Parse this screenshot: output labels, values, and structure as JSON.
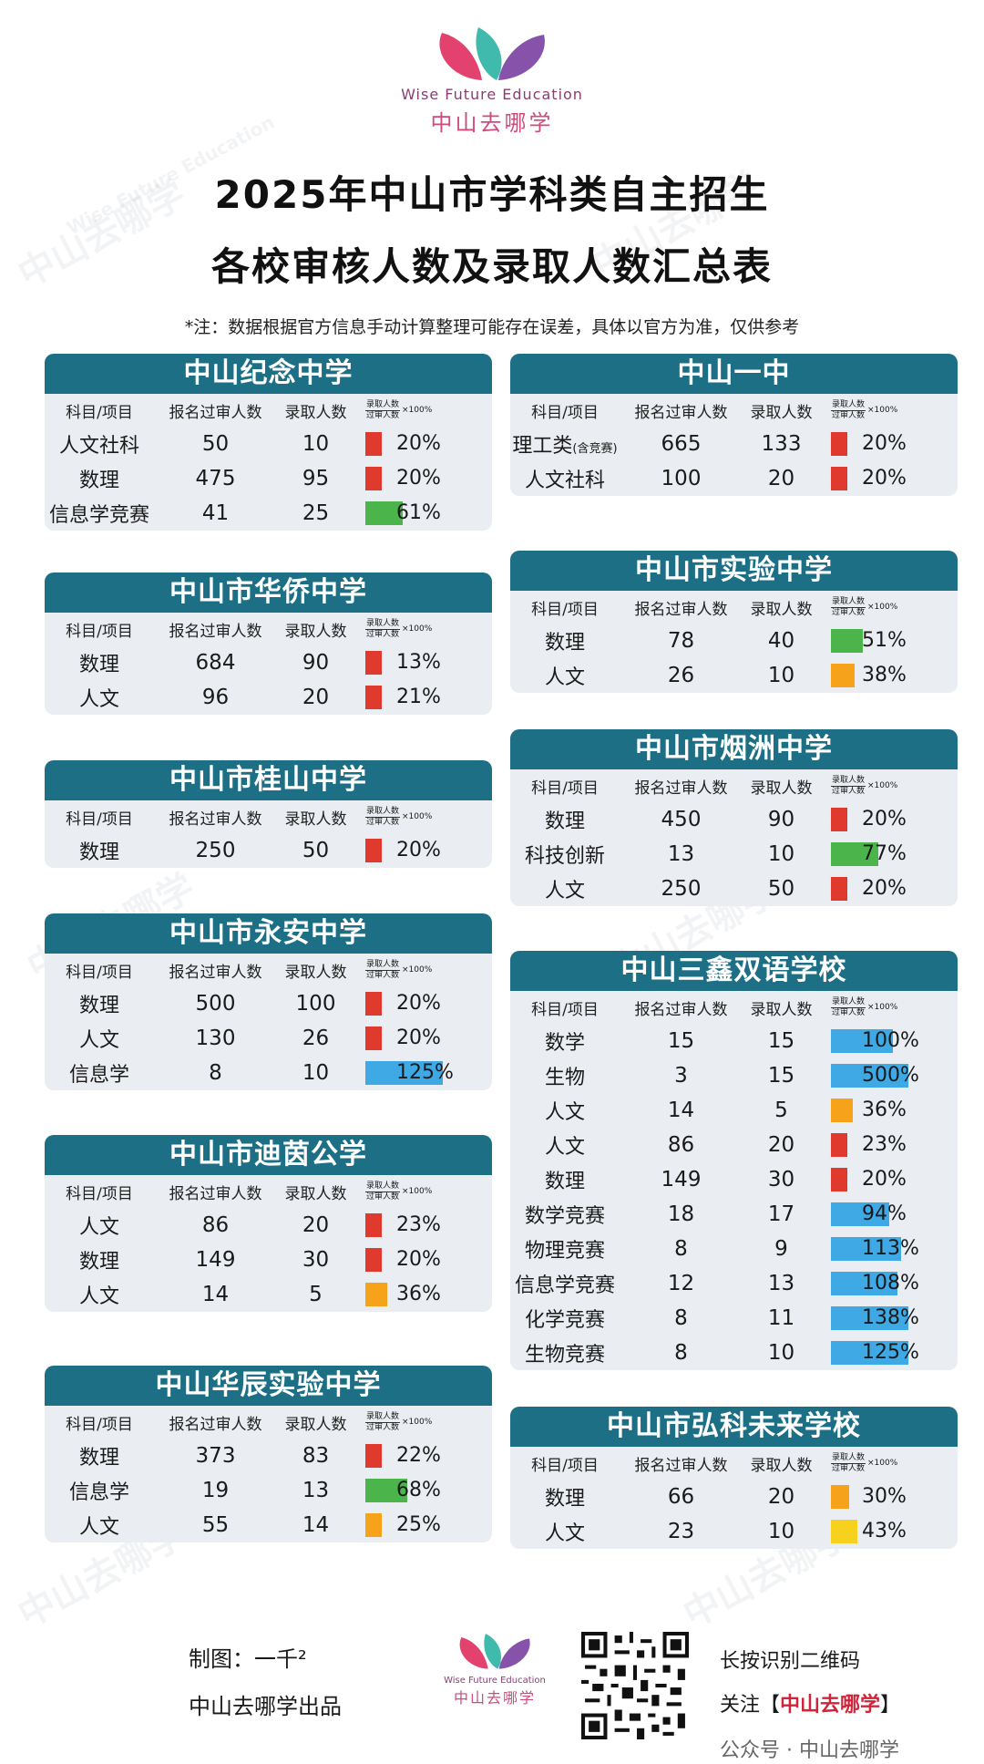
{
  "header": {
    "brand_en": "Wise Future Education",
    "brand_cn": "中山去哪学",
    "title_line1": "2025年中山市学科类自主招生",
    "title_line2": "各校审核人数及录取人数汇总表",
    "note": "*注：数据根据官方信息手动计算整理可能存在误差，具体以官方为准，仅供参考"
  },
  "table_header": {
    "subject": "科目/项目",
    "applicants": "报名过审人数",
    "admitted": "录取人数",
    "formula_num": "录取人数",
    "formula_den": "过审人数",
    "formula_mult": "×100%"
  },
  "colors": {
    "title_bar": "#1d6f86",
    "card_bg": "#eaeef2",
    "red": "#e03a2f",
    "green": "#4bb54b",
    "blue": "#3fa9e6",
    "orange": "#f7a21b",
    "yellow": "#f6d21e"
  },
  "watermark": {
    "text_cn": "中山去哪学",
    "text_en": "Wise Future Education"
  },
  "schools": [
    {
      "name": "中山纪念中学",
      "rows": [
        {
          "subject": "人文社科",
          "applicants": "50",
          "admitted": "10",
          "pct": 20,
          "pct_label": "20%",
          "color": "red"
        },
        {
          "subject": "数理",
          "applicants": "475",
          "admitted": "95",
          "pct": 20,
          "pct_label": "20%",
          "color": "red"
        },
        {
          "subject": "信息学竞赛",
          "applicants": "41",
          "admitted": "25",
          "pct": 61,
          "pct_label": "61%",
          "color": "green"
        }
      ]
    },
    {
      "name": "中山市华侨中学",
      "rows": [
        {
          "subject": "数理",
          "applicants": "684",
          "admitted": "90",
          "pct": 13,
          "pct_label": "13%",
          "color": "red"
        },
        {
          "subject": "人文",
          "applicants": "96",
          "admitted": "20",
          "pct": 21,
          "pct_label": "21%",
          "color": "red"
        }
      ]
    },
    {
      "name": "中山市桂山中学",
      "rows": [
        {
          "subject": "数理",
          "applicants": "250",
          "admitted": "50",
          "pct": 20,
          "pct_label": "20%",
          "color": "red"
        }
      ]
    },
    {
      "name": "中山市永安中学",
      "rows": [
        {
          "subject": "数理",
          "applicants": "500",
          "admitted": "100",
          "pct": 20,
          "pct_label": "20%",
          "color": "red"
        },
        {
          "subject": "人文",
          "applicants": "130",
          "admitted": "26",
          "pct": 20,
          "pct_label": "20%",
          "color": "red"
        },
        {
          "subject": "信息学",
          "applicants": "8",
          "admitted": "10",
          "pct": 125,
          "pct_label": "125%",
          "color": "blue"
        }
      ]
    },
    {
      "name": "中山市迪茵公学",
      "rows": [
        {
          "subject": "人文",
          "applicants": "86",
          "admitted": "20",
          "pct": 23,
          "pct_label": "23%",
          "color": "red"
        },
        {
          "subject": "数理",
          "applicants": "149",
          "admitted": "30",
          "pct": 20,
          "pct_label": "20%",
          "color": "red"
        },
        {
          "subject": "人文",
          "applicants": "14",
          "admitted": "5",
          "pct": 36,
          "pct_label": "36%",
          "color": "orange"
        }
      ]
    },
    {
      "name": "中山华辰实验中学",
      "rows": [
        {
          "subject": "数理",
          "applicants": "373",
          "admitted": "83",
          "pct": 22,
          "pct_label": "22%",
          "color": "red"
        },
        {
          "subject": "信息学",
          "applicants": "19",
          "admitted": "13",
          "pct": 68,
          "pct_label": "68%",
          "color": "green"
        },
        {
          "subject": "人文",
          "applicants": "55",
          "admitted": "14",
          "pct": 25,
          "pct_label": "25%",
          "color": "orange"
        }
      ]
    },
    {
      "name": "中山一中",
      "rows": [
        {
          "subject": "理工类",
          "subject_note": "(含竞赛)",
          "applicants": "665",
          "admitted": "133",
          "pct": 20,
          "pct_label": "20%",
          "color": "red"
        },
        {
          "subject": "人文社科",
          "applicants": "100",
          "admitted": "20",
          "pct": 20,
          "pct_label": "20%",
          "color": "red"
        }
      ]
    },
    {
      "name": "中山市实验中学",
      "rows": [
        {
          "subject": "数理",
          "applicants": "78",
          "admitted": "40",
          "pct": 51,
          "pct_label": "51%",
          "color": "green"
        },
        {
          "subject": "人文",
          "applicants": "26",
          "admitted": "10",
          "pct": 38,
          "pct_label": "38%",
          "color": "orange"
        }
      ]
    },
    {
      "name": "中山市烟洲中学",
      "rows": [
        {
          "subject": "数理",
          "applicants": "450",
          "admitted": "90",
          "pct": 20,
          "pct_label": "20%",
          "color": "red"
        },
        {
          "subject": "科技创新",
          "applicants": "13",
          "admitted": "10",
          "pct": 77,
          "pct_label": "77%",
          "color": "green"
        },
        {
          "subject": "人文",
          "applicants": "250",
          "admitted": "50",
          "pct": 20,
          "pct_label": "20%",
          "color": "red"
        }
      ]
    },
    {
      "name": "中山三鑫双语学校",
      "rows": [
        {
          "subject": "数学",
          "applicants": "15",
          "admitted": "15",
          "pct": 100,
          "pct_label": "100%",
          "color": "blue"
        },
        {
          "subject": "生物",
          "applicants": "3",
          "admitted": "15",
          "pct": 500,
          "pct_label": "500%",
          "color": "blue"
        },
        {
          "subject": "人文",
          "applicants": "14",
          "admitted": "5",
          "pct": 36,
          "pct_label": "36%",
          "color": "orange"
        },
        {
          "subject": "人文",
          "applicants": "86",
          "admitted": "20",
          "pct": 23,
          "pct_label": "23%",
          "color": "red"
        },
        {
          "subject": "数理",
          "applicants": "149",
          "admitted": "30",
          "pct": 20,
          "pct_label": "20%",
          "color": "red"
        },
        {
          "subject": "数学竞赛",
          "applicants": "18",
          "admitted": "17",
          "pct": 94,
          "pct_label": "94%",
          "color": "blue"
        },
        {
          "subject": "物理竞赛",
          "applicants": "8",
          "admitted": "9",
          "pct": 113,
          "pct_label": "113%",
          "color": "blue"
        },
        {
          "subject": "信息学竞赛",
          "applicants": "12",
          "admitted": "13",
          "pct": 108,
          "pct_label": "108%",
          "color": "blue"
        },
        {
          "subject": "化学竞赛",
          "applicants": "8",
          "admitted": "11",
          "pct": 138,
          "pct_label": "138%",
          "color": "blue"
        },
        {
          "subject": "生物竞赛",
          "applicants": "8",
          "admitted": "10",
          "pct": 125,
          "pct_label": "125%",
          "color": "blue"
        }
      ]
    },
    {
      "name": "中山市弘科未来学校",
      "rows": [
        {
          "subject": "数理",
          "applicants": "66",
          "admitted": "20",
          "pct": 30,
          "pct_label": "30%",
          "color": "orange"
        },
        {
          "subject": "人文",
          "applicants": "23",
          "admitted": "10",
          "pct": 43,
          "pct_label": "43%",
          "color": "yellow"
        }
      ]
    }
  ],
  "footer": {
    "credit": "制图：一千²",
    "producer": "中山去哪学出品",
    "logo_en": "Wise Future Education",
    "logo_cn": "中山去哪学",
    "scan_text": "长按识别二维码",
    "follow_prefix": "关注【",
    "follow_name": "中山去哪学",
    "follow_suffix": "】",
    "wechat": "公众号 · 中山去哪学"
  }
}
